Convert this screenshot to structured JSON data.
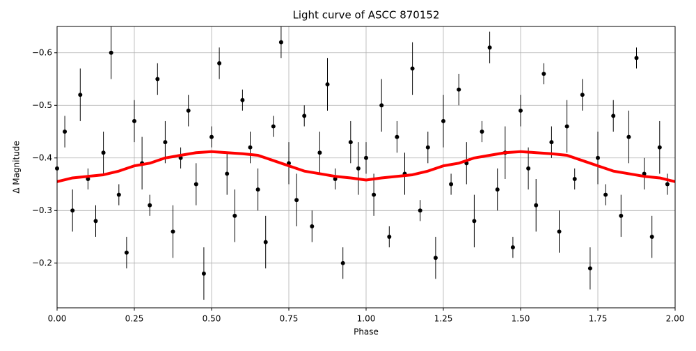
{
  "chart_data": {
    "type": "errorbar-scatter",
    "title": "Light curve of ASCC 870152",
    "x_label": "Phase",
    "y_label": "Δ Magnitude",
    "xlim": [
      0,
      2
    ],
    "ylim": [
      -0.115,
      -0.65
    ],
    "grid": true,
    "xticks": [
      {
        "value": 0,
        "label": "0.00"
      },
      {
        "value": 0.25,
        "label": "0.25"
      },
      {
        "value": 0.5,
        "label": "0.50"
      },
      {
        "value": 0.75,
        "label": "0.75"
      },
      {
        "value": 1,
        "label": "1.00"
      },
      {
        "value": 1.25,
        "label": "1.25"
      },
      {
        "value": 1.5,
        "label": "1.50"
      },
      {
        "value": 1.75,
        "label": "1.75"
      },
      {
        "value": 2,
        "label": "2.00"
      }
    ],
    "yticks": [
      {
        "value": -0.2,
        "label": "−0.2"
      },
      {
        "value": -0.3,
        "label": "−0.3"
      },
      {
        "value": -0.4,
        "label": "−0.4"
      },
      {
        "value": -0.5,
        "label": "−0.5"
      },
      {
        "value": -0.6,
        "label": "−0.6"
      }
    ],
    "points": {
      "color": "#000000",
      "x": [
        0,
        0.025,
        0.05,
        0.075,
        0.1,
        0.125,
        0.15,
        0.175,
        0.2,
        0.225,
        0.25,
        0.275,
        0.3,
        0.325,
        0.35,
        0.375,
        0.4,
        0.425,
        0.45,
        0.475,
        0.5,
        0.525,
        0.55,
        0.575,
        0.6,
        0.625,
        0.65,
        0.675,
        0.7,
        0.725,
        0.75,
        0.775,
        0.8,
        0.825,
        0.85,
        0.875,
        0.9,
        0.925,
        0.95,
        0.975,
        1,
        1.025,
        1.05,
        1.075,
        1.1,
        1.125,
        1.15,
        1.175,
        1.2,
        1.225,
        1.25,
        1.275,
        1.3,
        1.325,
        1.35,
        1.375,
        1.4,
        1.425,
        1.45,
        1.475,
        1.5,
        1.525,
        1.55,
        1.575,
        1.6,
        1.625,
        1.65,
        1.675,
        1.7,
        1.725,
        1.75,
        1.775,
        1.8,
        1.825,
        1.85,
        1.875,
        1.9,
        1.925,
        1.95,
        1.975
      ],
      "values": [
        -0.38,
        -0.45,
        -0.3,
        -0.52,
        -0.36,
        -0.28,
        -0.41,
        -0.6,
        -0.33,
        -0.22,
        -0.47,
        -0.39,
        -0.31,
        -0.55,
        -0.43,
        -0.26,
        -0.4,
        -0.49,
        -0.35,
        -0.18,
        -0.44,
        -0.58,
        -0.37,
        -0.29,
        -0.51,
        -0.42,
        -0.34,
        -0.24,
        -0.46,
        -0.62,
        -0.39,
        -0.32,
        -0.48,
        -0.27,
        -0.41,
        -0.54,
        -0.36,
        -0.2,
        -0.43,
        -0.38,
        -0.4,
        -0.33,
        -0.5,
        -0.25,
        -0.44,
        -0.37,
        -0.57,
        -0.3,
        -0.42,
        -0.21,
        -0.47,
        -0.35,
        -0.53,
        -0.39,
        -0.28,
        -0.45,
        -0.61,
        -0.34,
        -0.41,
        -0.23,
        -0.49,
        -0.38,
        -0.31,
        -0.56,
        -0.43,
        -0.26,
        -0.46,
        -0.36,
        -0.52,
        -0.19,
        -0.4,
        -0.33,
        -0.48,
        -0.29,
        -0.44,
        -0.59,
        -0.37,
        -0.25,
        -0.42,
        -0.35
      ],
      "errors": [
        0.02,
        0.03,
        0.04,
        0.05,
        0.02,
        0.03,
        0.04,
        0.05,
        0.02,
        0.03,
        0.04,
        0.05,
        0.02,
        0.03,
        0.04,
        0.05,
        0.02,
        0.03,
        0.04,
        0.05,
        0.02,
        0.03,
        0.04,
        0.05,
        0.02,
        0.03,
        0.04,
        0.05,
        0.02,
        0.03,
        0.04,
        0.05,
        0.02,
        0.03,
        0.04,
        0.05,
        0.02,
        0.03,
        0.04,
        0.05,
        0.03,
        0.04,
        0.05,
        0.02,
        0.03,
        0.04,
        0.05,
        0.02,
        0.03,
        0.04,
        0.05,
        0.02,
        0.03,
        0.04,
        0.05,
        0.02,
        0.03,
        0.04,
        0.05,
        0.02,
        0.03,
        0.04,
        0.05,
        0.02,
        0.03,
        0.04,
        0.05,
        0.02,
        0.03,
        0.04,
        0.05,
        0.02,
        0.03,
        0.04,
        0.05,
        0.02,
        0.03,
        0.04,
        0.05,
        0.02
      ]
    },
    "curve": {
      "color": "#ff0000",
      "x": [
        0,
        0.05,
        0.1,
        0.15,
        0.2,
        0.25,
        0.3,
        0.35,
        0.4,
        0.45,
        0.5,
        0.55,
        0.6,
        0.65,
        0.7,
        0.75,
        0.8,
        0.85,
        0.9,
        0.95,
        1,
        1.05,
        1.1,
        1.15,
        1.2,
        1.25,
        1.3,
        1.35,
        1.4,
        1.45,
        1.5,
        1.55,
        1.6,
        1.65,
        1.7,
        1.75,
        1.8,
        1.85,
        1.9,
        1.95,
        2
      ],
      "values": [
        -0.355,
        -0.362,
        -0.365,
        -0.368,
        -0.375,
        -0.385,
        -0.39,
        -0.4,
        -0.405,
        -0.41,
        -0.412,
        -0.41,
        -0.408,
        -0.405,
        -0.395,
        -0.385,
        -0.375,
        -0.37,
        -0.365,
        -0.362,
        -0.358,
        -0.362,
        -0.365,
        -0.368,
        -0.375,
        -0.385,
        -0.39,
        -0.4,
        -0.405,
        -0.41,
        -0.412,
        -0.41,
        -0.408,
        -0.405,
        -0.395,
        -0.385,
        -0.375,
        -0.37,
        -0.365,
        -0.362,
        -0.355
      ]
    }
  }
}
